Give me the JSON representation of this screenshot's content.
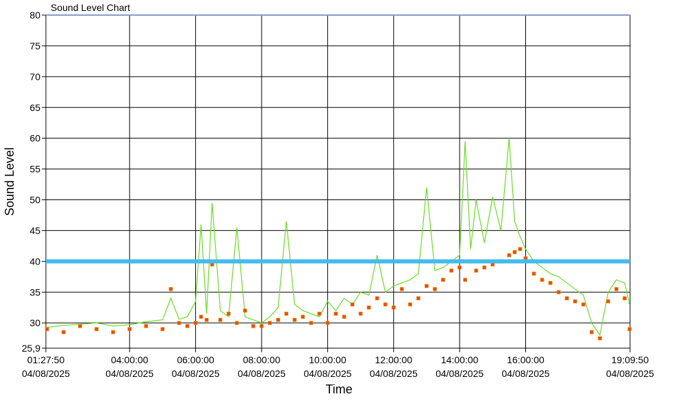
{
  "window": {
    "title": "Sound Level Chart"
  },
  "chart_data": {
    "type": "line",
    "title": "Sound Level Chart",
    "xlabel": "Time",
    "ylabel": "Sound Level",
    "ylim": [
      25.9,
      80
    ],
    "xlim": [
      "04/08/2025 01:27:50",
      "04/08/2025 19:09:50"
    ],
    "y_ticks": [
      "25,9",
      "30",
      "35",
      "40",
      "45",
      "50",
      "55",
      "60",
      "65",
      "70",
      "75",
      "80"
    ],
    "x_ticks": [
      {
        "time": "01:27:50",
        "date": "04/08/2025"
      },
      {
        "time": "04:00:00",
        "date": "04/08/2025"
      },
      {
        "time": "06:00:00",
        "date": "04/08/2025"
      },
      {
        "time": "08:00:00",
        "date": "04/08/2025"
      },
      {
        "time": "10:00:00",
        "date": "04/08/2025"
      },
      {
        "time": "12:00:00",
        "date": "04/08/2025"
      },
      {
        "time": "14:00:00",
        "date": "04/08/2025"
      },
      {
        "time": "16:00:00",
        "date": "04/08/2025"
      },
      {
        "time": "19:09:50",
        "date": "04/08/2025"
      }
    ],
    "threshold": 40,
    "grid": true,
    "colors": {
      "peak_line": "#66dd22",
      "marker_fill": "#ee4422",
      "marker_edge": "#dd9900",
      "threshold": "#44bbee"
    },
    "series": [
      {
        "values_note_free": true,
        "x": [
          "01:30",
          "02:00",
          "02:30",
          "03:00",
          "03:30",
          "04:00",
          "04:30",
          "05:00",
          "05:15",
          "05:30",
          "05:45",
          "06:00",
          "06:10",
          "06:20",
          "06:30",
          "06:45",
          "07:00",
          "07:15",
          "07:30",
          "07:45",
          "08:00",
          "08:15",
          "08:30",
          "08:45",
          "09:00",
          "09:15",
          "09:30",
          "09:45",
          "10:00",
          "10:15",
          "10:30",
          "10:45",
          "11:00",
          "11:15",
          "11:30",
          "11:45",
          "12:00",
          "12:15",
          "12:30",
          "12:45",
          "13:00",
          "13:15",
          "13:30",
          "13:45",
          "14:00",
          "14:10",
          "14:20",
          "14:30",
          "14:45",
          "15:00",
          "15:15",
          "15:30",
          "15:40",
          "15:50",
          "16:00",
          "16:15",
          "16:30",
          "16:45",
          "17:00",
          "17:15",
          "17:30",
          "17:45",
          "18:00",
          "18:15",
          "18:30",
          "18:45",
          "19:00",
          "19:09"
        ],
        "values": [
          29.3,
          29.6,
          29.8,
          30.0,
          29.5,
          29.7,
          30.2,
          30.5,
          34.0,
          30.6,
          31.0,
          33.5,
          46.0,
          31.5,
          49.5,
          32.0,
          31.0,
          45.5,
          31.0,
          30.5,
          30.0,
          31.0,
          32.5,
          46.5,
          33.0,
          32.0,
          31.5,
          31.0,
          33.5,
          32.0,
          34.0,
          33.0,
          35.0,
          34.5,
          41.0,
          35.0,
          36.0,
          36.5,
          37.0,
          38.0,
          52.0,
          38.5,
          39.0,
          40.0,
          41.0,
          59.5,
          42.0,
          50.0,
          43.0,
          50.5,
          45.0,
          60.0,
          46.5,
          44.0,
          42.0,
          40.0,
          39.0,
          38.0,
          37.5,
          36.5,
          35.5,
          34.5,
          30.0,
          28.0,
          35.0,
          37.0,
          36.5,
          33.0
        ]
      },
      {
        "x": [
          "01:30",
          "02:00",
          "02:30",
          "03:00",
          "03:30",
          "04:00",
          "04:30",
          "05:00",
          "05:15",
          "05:30",
          "05:45",
          "06:00",
          "06:10",
          "06:20",
          "06:30",
          "06:45",
          "07:00",
          "07:15",
          "07:30",
          "07:45",
          "08:00",
          "08:15",
          "08:30",
          "08:45",
          "09:00",
          "09:15",
          "09:30",
          "09:45",
          "10:00",
          "10:15",
          "10:30",
          "10:45",
          "11:00",
          "11:15",
          "11:30",
          "11:45",
          "12:00",
          "12:15",
          "12:30",
          "12:45",
          "13:00",
          "13:15",
          "13:30",
          "13:45",
          "14:00",
          "14:10",
          "14:20",
          "14:30",
          "14:45",
          "15:00",
          "15:15",
          "15:30",
          "15:40",
          "15:50",
          "16:00",
          "16:15",
          "16:30",
          "16:45",
          "17:00",
          "17:15",
          "17:30",
          "17:45",
          "18:00",
          "18:15",
          "18:30",
          "18:45",
          "19:00",
          "19:09"
        ],
        "values": [
          29.0,
          28.5,
          29.5,
          29.0,
          28.5,
          29.0,
          29.5,
          29.0,
          35.5,
          30.0,
          29.5,
          30.0,
          31.0,
          30.5,
          39.5,
          30.5,
          31.5,
          30.0,
          32.0,
          29.5,
          29.5,
          30.0,
          30.5,
          31.5,
          30.5,
          31.0,
          30.0,
          31.5,
          30.0,
          31.5,
          31.0,
          33.0,
          31.5,
          32.5,
          34.0,
          33.0,
          32.5,
          35.5,
          33.0,
          34.0,
          36.0,
          35.5,
          37.0,
          38.5,
          39.0,
          37.0,
          40.0,
          38.5,
          39.0,
          39.5,
          40.0,
          41.0,
          41.5,
          42.0,
          40.5,
          38.0,
          37.0,
          36.5,
          35.0,
          34.0,
          33.5,
          33.0,
          28.5,
          27.5,
          33.5,
          35.5,
          34.0,
          29.0
        ]
      }
    ]
  }
}
